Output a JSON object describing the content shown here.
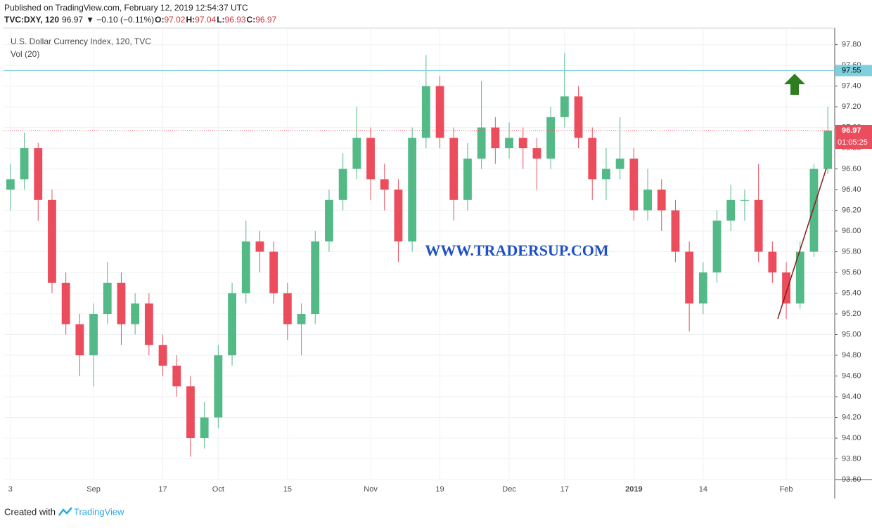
{
  "header": {
    "published": "Published on TradingView.com, February 12, 2019 12:54:37 UTC",
    "symbol": "TVC:DXY, 120",
    "last": "96.97",
    "change": "▼ −0.10 (−0.11%)",
    "ohlc": [
      {
        "k": "O:",
        "v": "97.02"
      },
      {
        "k": "H:",
        "v": "97.04"
      },
      {
        "k": "L:",
        "v": "96.93"
      },
      {
        "k": "C:",
        "v": "96.97"
      }
    ]
  },
  "footer": {
    "created": "Created with",
    "brand": "TradingView"
  },
  "watermark": "WWW.TRADERSUP.COM",
  "chart_data": {
    "type": "candlestick",
    "title": "U.S. Dollar Currency Index, 120, TVC",
    "subtitle": "Vol (20)",
    "categories": [
      "3",
      null,
      null,
      null,
      null,
      null,
      "Sep",
      null,
      null,
      null,
      null,
      "17",
      null,
      null,
      null,
      "Oct",
      null,
      null,
      null,
      null,
      "15",
      null,
      null,
      null,
      null,
      null,
      "Nov",
      null,
      null,
      null,
      null,
      "19",
      null,
      null,
      null,
      null,
      "Dec",
      null,
      null,
      null,
      "17",
      null,
      null,
      null,
      null,
      "2019",
      null,
      null,
      null,
      null,
      "14",
      null,
      null,
      null,
      null,
      null,
      "Feb",
      null,
      null,
      null
    ],
    "open": [
      96.4,
      96.5,
      96.8,
      96.3,
      95.5,
      95.1,
      94.8,
      95.2,
      95.5,
      95.1,
      95.3,
      94.9,
      94.7,
      94.5,
      94.0,
      94.2,
      94.8,
      95.4,
      95.9,
      95.8,
      95.4,
      95.1,
      95.2,
      95.9,
      96.3,
      96.6,
      96.9,
      96.5,
      96.4,
      95.9,
      96.9,
      97.4,
      96.9,
      96.3,
      96.7,
      97.0,
      96.8,
      96.9,
      96.8,
      96.7,
      97.1,
      97.3,
      96.9,
      96.5,
      96.6,
      96.7,
      96.2,
      96.4,
      96.2,
      95.8,
      95.3,
      95.6,
      96.1,
      96.3,
      96.3,
      95.8,
      95.6,
      95.3,
      95.8,
      96.6
    ],
    "high": [
      96.65,
      96.95,
      96.85,
      96.4,
      95.6,
      95.2,
      95.3,
      95.7,
      95.6,
      95.4,
      95.4,
      95.0,
      94.8,
      94.6,
      94.35,
      94.9,
      95.5,
      96.1,
      96.0,
      95.9,
      95.5,
      95.3,
      96.0,
      96.4,
      96.75,
      97.2,
      97.0,
      96.65,
      96.5,
      97.0,
      97.7,
      97.5,
      97.0,
      96.85,
      97.45,
      97.1,
      97.05,
      97.0,
      96.9,
      97.2,
      97.72,
      97.4,
      97.0,
      96.8,
      97.1,
      96.8,
      96.6,
      96.5,
      96.3,
      95.9,
      95.7,
      96.2,
      96.45,
      96.4,
      96.65,
      95.9,
      95.7,
      95.9,
      96.65,
      97.2
    ],
    "low": [
      96.2,
      96.4,
      96.1,
      95.4,
      95.0,
      94.6,
      94.5,
      95.1,
      94.9,
      95.0,
      94.8,
      94.6,
      94.4,
      93.82,
      93.9,
      94.1,
      94.7,
      95.3,
      95.6,
      95.3,
      94.95,
      94.8,
      95.1,
      95.8,
      96.2,
      96.5,
      96.3,
      96.2,
      95.7,
      95.8,
      96.8,
      96.8,
      96.1,
      96.2,
      96.6,
      96.65,
      96.7,
      96.6,
      96.4,
      96.6,
      97.0,
      96.8,
      96.3,
      96.3,
      96.5,
      96.1,
      96.1,
      96.0,
      95.7,
      95.03,
      95.2,
      95.5,
      96.0,
      96.1,
      95.7,
      95.5,
      95.15,
      95.25,
      95.75,
      96.55
    ],
    "close": [
      96.5,
      96.8,
      96.3,
      95.5,
      95.1,
      94.8,
      95.2,
      95.5,
      95.1,
      95.3,
      94.9,
      94.7,
      94.5,
      94.0,
      94.2,
      94.8,
      95.4,
      95.9,
      95.8,
      95.4,
      95.1,
      95.2,
      95.9,
      96.3,
      96.6,
      96.9,
      96.5,
      96.4,
      95.9,
      96.9,
      97.4,
      96.9,
      96.3,
      96.7,
      97.0,
      96.8,
      96.9,
      96.8,
      96.7,
      97.1,
      97.3,
      96.9,
      96.5,
      96.6,
      96.7,
      96.2,
      96.4,
      96.2,
      95.8,
      95.3,
      95.6,
      96.1,
      96.3,
      96.3,
      95.8,
      95.6,
      95.3,
      95.8,
      96.6,
      96.97
    ],
    "up_color": "#53b987",
    "down_color": "#eb4d5c",
    "ylim": [
      93.6,
      97.96
    ],
    "yticks": [
      {
        "value": 93.6,
        "label": "93.60"
      },
      {
        "value": 93.8,
        "label": "93.80"
      },
      {
        "value": 94.0,
        "label": "94.00"
      },
      {
        "value": 94.2,
        "label": "94.20"
      },
      {
        "value": 94.4,
        "label": "94.40"
      },
      {
        "value": 94.6,
        "label": "94.60"
      },
      {
        "value": 94.8,
        "label": "94.80"
      },
      {
        "value": 95.0,
        "label": "95.00"
      },
      {
        "value": 95.2,
        "label": "95.20"
      },
      {
        "value": 95.4,
        "label": "95.40"
      },
      {
        "value": 95.6,
        "label": "95.60"
      },
      {
        "value": 95.8,
        "label": "95.80"
      },
      {
        "value": 96.0,
        "label": "96.00"
      },
      {
        "value": 96.2,
        "label": "96.20"
      },
      {
        "value": 96.4,
        "label": "96.40"
      },
      {
        "value": 96.6,
        "label": "96.60"
      },
      {
        "value": 96.8,
        "label": "96.80"
      },
      {
        "value": 97.0,
        "label": "97.00"
      },
      {
        "value": 97.2,
        "label": "97.20"
      },
      {
        "value": 97.4,
        "label": "97.40"
      },
      {
        "value": 97.6,
        "label": "97.60"
      },
      {
        "value": 97.8,
        "label": "97.80"
      }
    ],
    "grid": true,
    "hlines": [
      {
        "value": 97.55,
        "color": "#7fcfdd"
      }
    ],
    "last_price_color": "#eb4d5c",
    "countdown": "01:05:25"
  }
}
